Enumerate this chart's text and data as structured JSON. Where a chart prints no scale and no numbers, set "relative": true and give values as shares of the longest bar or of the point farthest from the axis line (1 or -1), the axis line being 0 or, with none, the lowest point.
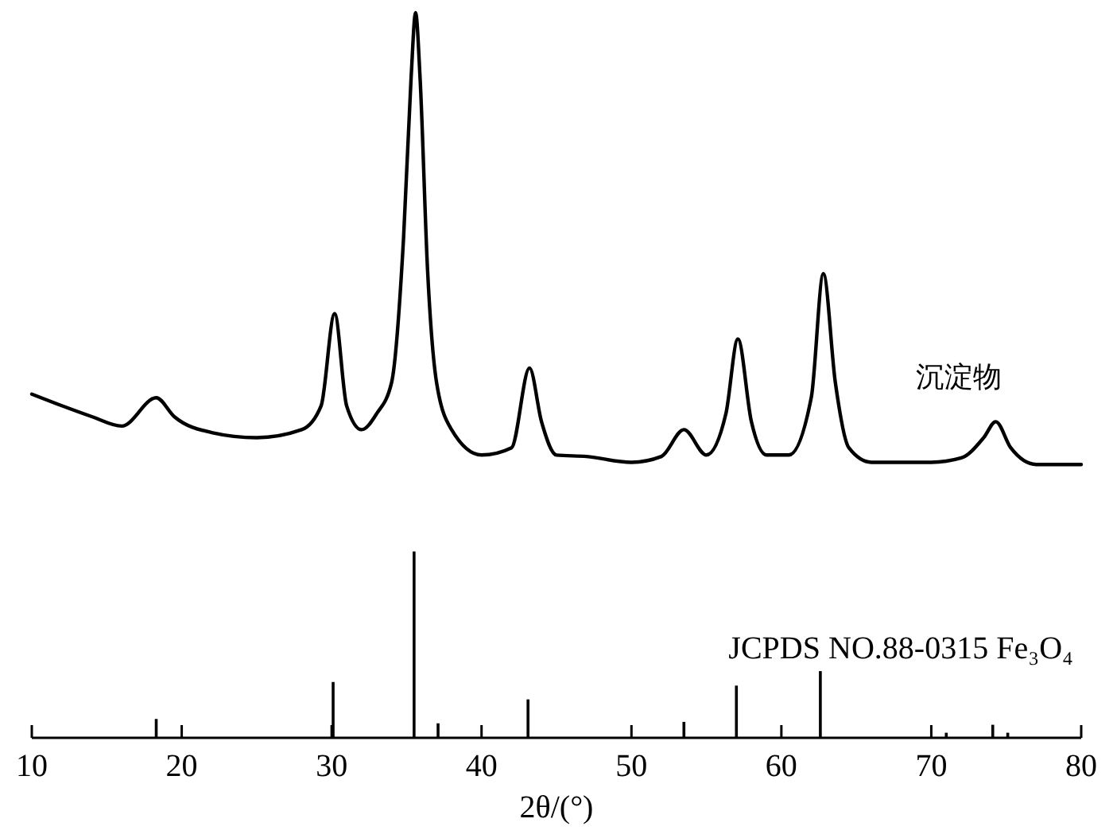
{
  "chart_data": {
    "type": "line",
    "xlabel": "2θ/(°)",
    "relative": true,
    "grid": false,
    "xlim": [
      10,
      80
    ],
    "xticks": [
      10,
      20,
      30,
      40,
      50,
      60,
      70,
      80
    ],
    "series": [
      {
        "name": "沉淀物",
        "color": "#000000",
        "x": [
          10,
          12,
          14,
          16,
          18.3,
          19.5,
          22,
          25,
          28,
          29.3,
          30.2,
          31,
          32,
          33,
          34,
          34.8,
          35.3,
          35.6,
          35.9,
          36.4,
          37,
          38,
          40,
          42,
          43.2,
          44,
          45,
          47,
          50,
          52,
          53.5,
          55,
          56.3,
          57.1,
          58,
          59,
          60.5,
          62,
          62.8,
          63.6,
          64.5,
          66,
          70,
          72,
          73.5,
          74.3,
          75.3,
          77,
          80
        ],
        "values": [
          0.474,
          0.458,
          0.443,
          0.43,
          0.469,
          0.443,
          0.421,
          0.414,
          0.425,
          0.458,
          0.585,
          0.458,
          0.425,
          0.447,
          0.49,
          0.69,
          0.91,
          1.0,
          0.91,
          0.645,
          0.49,
          0.425,
          0.39,
          0.4,
          0.51,
          0.436,
          0.39,
          0.388,
          0.38,
          0.388,
          0.425,
          0.39,
          0.447,
          0.55,
          0.436,
          0.39,
          0.39,
          0.47,
          0.64,
          0.49,
          0.4,
          0.38,
          0.38,
          0.386,
          0.414,
          0.436,
          0.4,
          0.377,
          0.377
        ]
      },
      {
        "name": "JCPDS NO.88-0315 Fe₃O₄",
        "type": "bar",
        "color": "#000000",
        "x": [
          18.3,
          30.1,
          35.5,
          37.1,
          43.1,
          53.5,
          57.0,
          62.6,
          71.0,
          74.1,
          75.1
        ],
        "values": [
          0.026,
          0.077,
          0.257,
          0.02,
          0.053,
          0.022,
          0.072,
          0.092,
          0.007,
          0.018,
          0.007
        ]
      }
    ]
  }
}
